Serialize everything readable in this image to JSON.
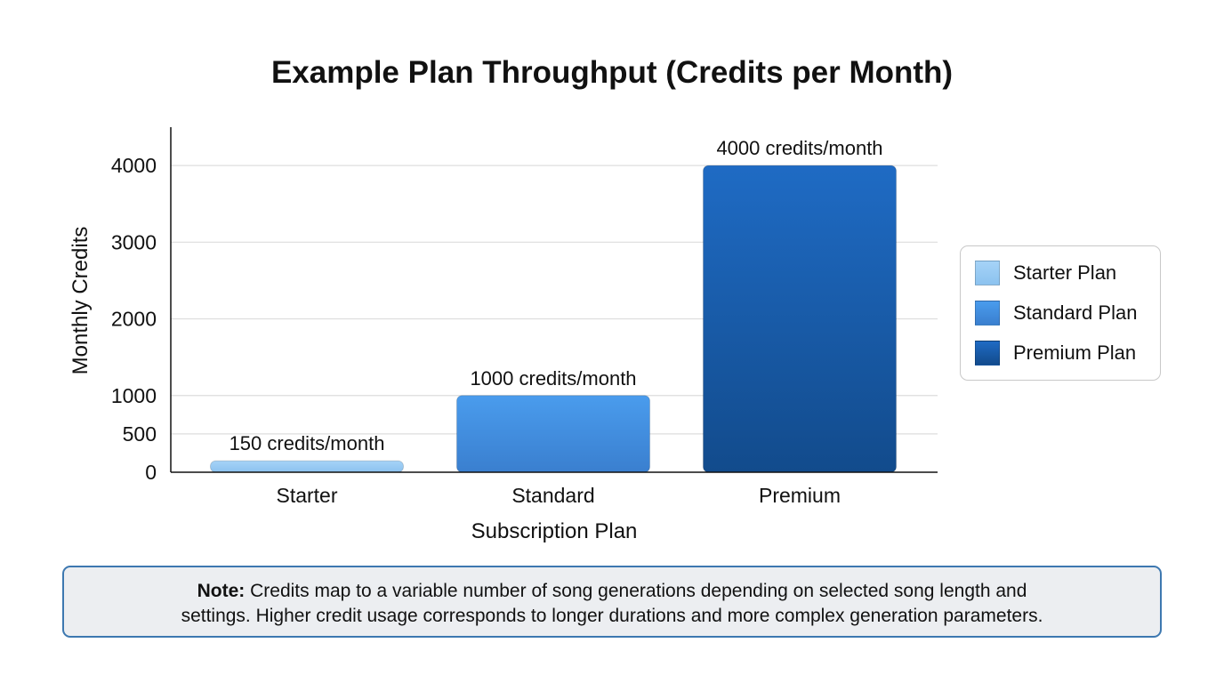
{
  "chart_data": {
    "type": "bar",
    "title": "Example Plan Throughput (Credits per Month)",
    "xlabel": "Subscription Plan",
    "ylabel": "Monthly Credits",
    "categories": [
      "Starter",
      "Standard",
      "Premium"
    ],
    "values": [
      150,
      1000,
      4000
    ],
    "data_labels": [
      "150 credits/month",
      "1000 credits/month",
      "4000 credits/month"
    ],
    "yticks": [
      0,
      500,
      1000,
      2000,
      3000,
      4000
    ],
    "ylim": [
      0,
      4500
    ],
    "grid": true,
    "legend_position": "right",
    "legend": [
      "Starter Plan",
      "Standard Plan",
      "Premium Plan"
    ],
    "colors": [
      {
        "top": "#a6d3f7",
        "bottom": "#8cc2ef"
      },
      {
        "top": "#4a9ced",
        "bottom": "#3a7fcf"
      },
      {
        "top": "#1f6bc4",
        "bottom": "#124b8c"
      }
    ]
  },
  "note": {
    "label": "Note:",
    "line1": "Credits map to a variable number of song generations depending on selected song length and",
    "line2": "settings. Higher credit usage corresponds to longer durations and more complex generation parameters."
  }
}
